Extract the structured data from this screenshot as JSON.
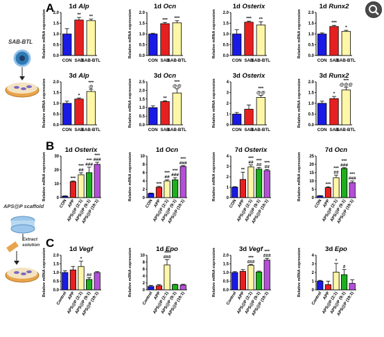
{
  "colors": {
    "con": "#1a1ae6",
    "sab": "#e62020",
    "sabbtl": "#fff7a8",
    "control": "#1a1ae6",
    "app": "#e62020",
    "aps21": "#fff7a8",
    "aps91": "#1fae1f",
    "aps191": "#b44fd8"
  },
  "panel_labels": [
    "A",
    "B",
    "C"
  ],
  "left_labels": {
    "sab_btl": "SAB-BTL",
    "aps_scaffold": "APS@P scaffold",
    "extract": "Extract\nsolution"
  },
  "ylabel": "Relative mRNA expression",
  "chart_data": [
    {
      "type": "bar",
      "title": "1d Alp",
      "categories": [
        "CON",
        "SAB",
        "SAB-BTL"
      ],
      "values": [
        1.0,
        1.65,
        1.62
      ],
      "errors": [
        0.25,
        0.12,
        0.07
      ],
      "ylim": [
        0,
        2.0
      ],
      "yticks": [
        0.0,
        0.5,
        1.0,
        1.5,
        2.0
      ],
      "annotations": [
        "",
        "**",
        "**"
      ],
      "colors": [
        "con",
        "sab",
        "sabbtl"
      ]
    },
    {
      "type": "bar",
      "title": "1d Ocn",
      "categories": [
        "CON",
        "SAB",
        "SAB-BTL"
      ],
      "values": [
        1.0,
        1.48,
        1.52
      ],
      "errors": [
        0.03,
        0.06,
        0.1
      ],
      "ylim": [
        0,
        2.0
      ],
      "yticks": [
        0.0,
        0.5,
        1.0,
        1.5,
        2.0
      ],
      "annotations": [
        "",
        "***",
        "***"
      ],
      "colors": [
        "con",
        "sab",
        "sabbtl"
      ]
    },
    {
      "type": "bar",
      "title": "1d Osterix",
      "categories": [
        "CON",
        "SAB",
        "SAB-BTL"
      ],
      "values": [
        1.0,
        1.55,
        1.42
      ],
      "errors": [
        0.2,
        0.05,
        0.15
      ],
      "ylim": [
        0,
        2.0
      ],
      "yticks": [
        0.0,
        0.5,
        1.0,
        1.5,
        2.0
      ],
      "annotations": [
        "",
        "***",
        "**"
      ],
      "colors": [
        "con",
        "sab",
        "sabbtl"
      ]
    },
    {
      "type": "bar",
      "title": "1d Runx2",
      "categories": [
        "CON",
        "SAB",
        "SAB-BTL"
      ],
      "values": [
        1.0,
        1.35,
        1.12
      ],
      "errors": [
        0.05,
        0.05,
        0.05
      ],
      "ylim": [
        0,
        2.0
      ],
      "yticks": [
        0.0,
        0.5,
        1.0,
        1.5,
        2.0
      ],
      "annotations": [
        "",
        "***",
        "*"
      ],
      "colors": [
        "con",
        "sab",
        "sabbtl"
      ]
    },
    {
      "type": "bar",
      "title": "3d Alp",
      "categories": [
        "CON",
        "SAB",
        "SAB-BTL"
      ],
      "values": [
        1.0,
        1.2,
        1.55
      ],
      "errors": [
        0.1,
        0.05,
        0.1
      ],
      "ylim": [
        0,
        2.0
      ],
      "yticks": [
        0.0,
        0.5,
        1.0,
        1.5,
        2.0
      ],
      "annotations": [
        "",
        "*",
        "***\n@"
      ],
      "colors": [
        "con",
        "sab",
        "sabbtl"
      ]
    },
    {
      "type": "bar",
      "title": "3d Ocn",
      "categories": [
        "CON",
        "SAB",
        "SAB-BTL"
      ],
      "values": [
        1.0,
        1.35,
        1.85
      ],
      "errors": [
        0.1,
        0.05,
        0.25
      ],
      "ylim": [
        0,
        2.5
      ],
      "yticks": [
        0.0,
        0.5,
        1.0,
        1.5,
        2.0,
        2.5
      ],
      "annotations": [
        "",
        "**",
        "***\n@@"
      ],
      "colors": [
        "con",
        "sab",
        "sabbtl"
      ]
    },
    {
      "type": "bar",
      "title": "3d Osterix",
      "categories": [
        "CON",
        "SAB",
        "SAB-BTL"
      ],
      "values": [
        1.0,
        1.45,
        2.55
      ],
      "errors": [
        0.15,
        0.4,
        0.2
      ],
      "ylim": [
        0,
        4
      ],
      "yticks": [
        0,
        1,
        2,
        3,
        4
      ],
      "annotations": [
        "",
        "",
        "***\n@@"
      ],
      "colors": [
        "con",
        "sab",
        "sabbtl"
      ]
    },
    {
      "type": "bar",
      "title": "3d Runx2",
      "categories": [
        "CON",
        "SAB",
        "SAB-BTL"
      ],
      "values": [
        1.0,
        1.22,
        1.62
      ],
      "errors": [
        0.1,
        0.1,
        0.12
      ],
      "ylim": [
        0,
        2.0
      ],
      "yticks": [
        0.0,
        0.5,
        1.0,
        1.5,
        2.0
      ],
      "annotations": [
        "",
        "*",
        "***\n@@@"
      ],
      "colors": [
        "con",
        "sab",
        "sabbtl"
      ]
    },
    {
      "type": "bar",
      "title": "1d Osterix",
      "categories": [
        "CON",
        "APP",
        "APS@P (2:1)",
        "APS@P (9:1)",
        "APS@P (19:1)"
      ],
      "values": [
        1.0,
        11.5,
        16.5,
        18.0,
        24.0
      ],
      "errors": [
        0.3,
        0.5,
        1.5,
        4.0,
        1.5
      ],
      "ylim": [
        0,
        30
      ],
      "yticks": [
        0,
        10,
        20,
        30
      ],
      "annotations": [
        "",
        "***",
        "***\n##",
        "***\n###",
        "***\n###"
      ],
      "colors": [
        "con",
        "sab",
        "sabbtl",
        "aps91",
        "aps191"
      ]
    },
    {
      "type": "bar",
      "title": "1d Ocn",
      "categories": [
        "CON",
        "APP",
        "APS@P (2:1)",
        "APS@P (9:1)",
        "APS@P (19:1)"
      ],
      "values": [
        1.0,
        2.5,
        4.0,
        4.3,
        7.5
      ],
      "errors": [
        0.1,
        0.2,
        0.3,
        0.5,
        0.2
      ],
      "ylim": [
        0,
        10
      ],
      "yticks": [
        0,
        2,
        4,
        6,
        8,
        10
      ],
      "annotations": [
        "",
        "***",
        "***\n##",
        "***\n###",
        "***\n###"
      ],
      "colors": [
        "con",
        "sab",
        "sabbtl",
        "aps91",
        "aps191"
      ]
    },
    {
      "type": "bar",
      "title": "7d Osterix",
      "categories": [
        "CON",
        "APP",
        "APS@P (2:1)",
        "APS@P (9:1)",
        "APS@P (19:1)"
      ],
      "values": [
        1.0,
        1.75,
        2.95,
        2.75,
        2.6
      ],
      "errors": [
        0.05,
        0.7,
        0.2,
        0.15,
        0.1
      ],
      "ylim": [
        0,
        4
      ],
      "yticks": [
        0,
        1,
        2,
        3,
        4
      ],
      "annotations": [
        "",
        "**",
        "***\n##",
        "***\n##",
        "***\n##"
      ],
      "colors": [
        "con",
        "sab",
        "sabbtl",
        "aps91",
        "aps191"
      ]
    },
    {
      "type": "bar",
      "title": "7d Ocn",
      "categories": [
        "CON",
        "APP",
        "APS@P (2:1)",
        "APS@P (9:1)",
        "APS@P (19:1)"
      ],
      "values": [
        1.0,
        6.0,
        12.0,
        17.5,
        9.0
      ],
      "errors": [
        0.2,
        0.5,
        1.5,
        0.5,
        1.0
      ],
      "ylim": [
        0,
        25
      ],
      "yticks": [
        0,
        5,
        10,
        15,
        20,
        25
      ],
      "annotations": [
        "",
        "***",
        "***\n##",
        "***\n###",
        "***\n###"
      ],
      "colors": [
        "con",
        "sab",
        "sabbtl",
        "aps91",
        "aps191"
      ]
    },
    {
      "type": "bar",
      "title": "1d Vegf",
      "categories": [
        "Control",
        "APP",
        "APS@P (2:1)",
        "APS@P (9:1)",
        "APS@P (19:1)"
      ],
      "values": [
        1.0,
        1.15,
        1.35,
        0.6,
        1.0
      ],
      "errors": [
        0.1,
        0.2,
        0.3,
        0.1,
        0.05
      ],
      "ylim": [
        0,
        2.0
      ],
      "yticks": [
        0.0,
        0.5,
        1.0,
        1.5,
        2.0
      ],
      "annotations": [
        "",
        "",
        "*",
        "##",
        ""
      ],
      "colors": [
        "con",
        "sab",
        "sabbtl",
        "aps91",
        "aps191"
      ]
    },
    {
      "type": "bar",
      "title": "1d Epo",
      "categories": [
        "Control",
        "APP",
        "APS@P (2:1)",
        "APS@P (9:1)",
        "APS@P (19:1)"
      ],
      "values": [
        1.0,
        1.2,
        7.2,
        1.5,
        1.4
      ],
      "errors": [
        0.3,
        0.3,
        1.5,
        0.1,
        0.2
      ],
      "ylim": [
        0,
        10
      ],
      "yticks": [
        0,
        2,
        4,
        6,
        8,
        10
      ],
      "annotations": [
        "",
        "",
        "***\n###",
        "",
        ""
      ],
      "colors": [
        "con",
        "sab",
        "sabbtl",
        "aps91",
        "aps191"
      ]
    },
    {
      "type": "bar",
      "title": "3d Vegf",
      "categories": [
        "Control",
        "APP",
        "APS@P (2:1)",
        "APS@P (9:1)",
        "APS@P (19:1)"
      ],
      "values": [
        1.0,
        1.07,
        1.42,
        1.03,
        1.72
      ],
      "errors": [
        0.05,
        0.1,
        0.05,
        0.05,
        0.1
      ],
      "ylim": [
        0,
        2.0
      ],
      "yticks": [
        0.0,
        0.5,
        1.0,
        1.5,
        2.0
      ],
      "annotations": [
        "",
        "",
        "***\n###",
        "",
        "***\n###"
      ],
      "colors": [
        "con",
        "sab",
        "sabbtl",
        "aps91",
        "aps191"
      ]
    },
    {
      "type": "bar",
      "title": "3d Epo",
      "categories": [
        "Control",
        "APP",
        "APS@P (2:1)",
        "APS@P (9:1)",
        "APS@P (19:1)"
      ],
      "values": [
        1.0,
        0.6,
        2.05,
        1.75,
        0.75
      ],
      "errors": [
        0.1,
        0.4,
        1.0,
        0.6,
        0.4
      ],
      "ylim": [
        0,
        4
      ],
      "yticks": [
        0,
        1,
        2,
        3,
        4
      ],
      "annotations": [
        "",
        "",
        "*",
        "#",
        ""
      ],
      "colors": [
        "con",
        "sab",
        "sabbtl",
        "aps91",
        "aps191"
      ]
    }
  ]
}
